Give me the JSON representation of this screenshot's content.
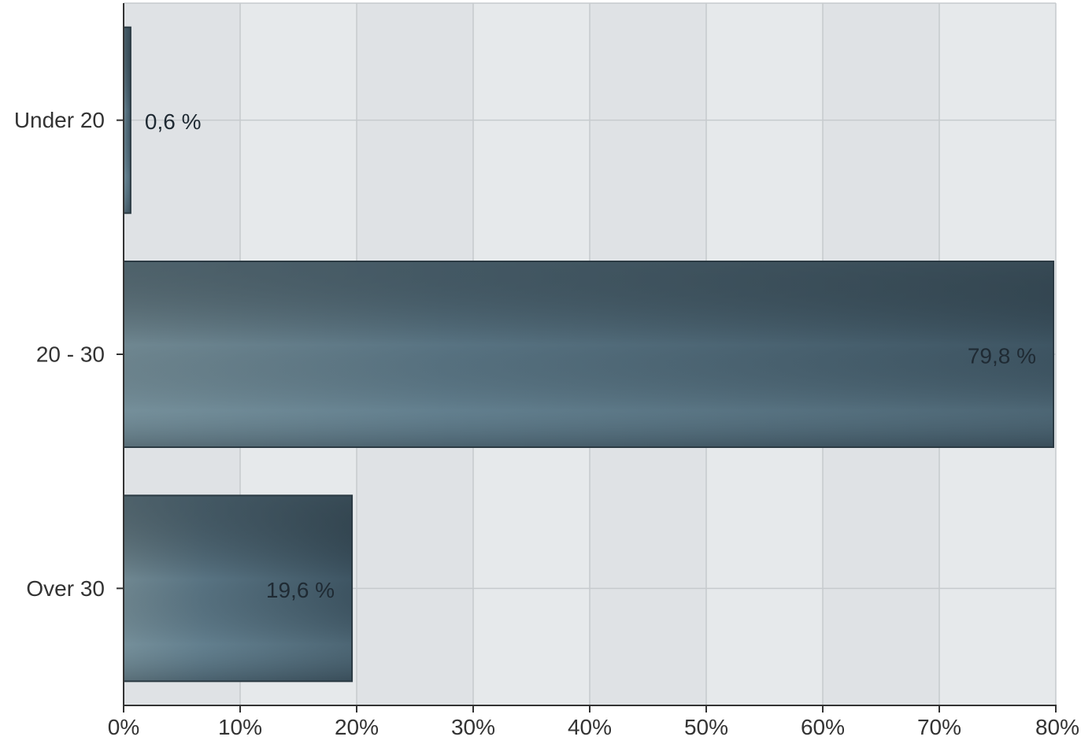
{
  "chart_data": {
    "type": "bar",
    "orientation": "horizontal",
    "categories": [
      "Under 20",
      "20 - 30",
      "Over 30"
    ],
    "values": [
      0.6,
      79.8,
      19.6
    ],
    "value_labels": [
      "0,6 %",
      "79,8 %",
      "19,6 %"
    ],
    "xlim": [
      0,
      80
    ],
    "x_ticks": [
      0,
      10,
      20,
      30,
      40,
      50,
      60,
      70,
      80
    ],
    "x_tick_labels": [
      "0%",
      "10%",
      "20%",
      "30%",
      "40%",
      "50%",
      "60%",
      "70%",
      "80%"
    ],
    "grid": true,
    "legend": "none",
    "colors": {
      "plot_background_light": "#e6e9eb",
      "plot_background_band": "#dfe2e5",
      "gridline": "#c6cacd",
      "bar_dark": "#37474f",
      "bar_mid": "#4e6878",
      "bar_light": "#6b8692",
      "bar_border": "#2b3a43",
      "axis": "#333333"
    }
  }
}
